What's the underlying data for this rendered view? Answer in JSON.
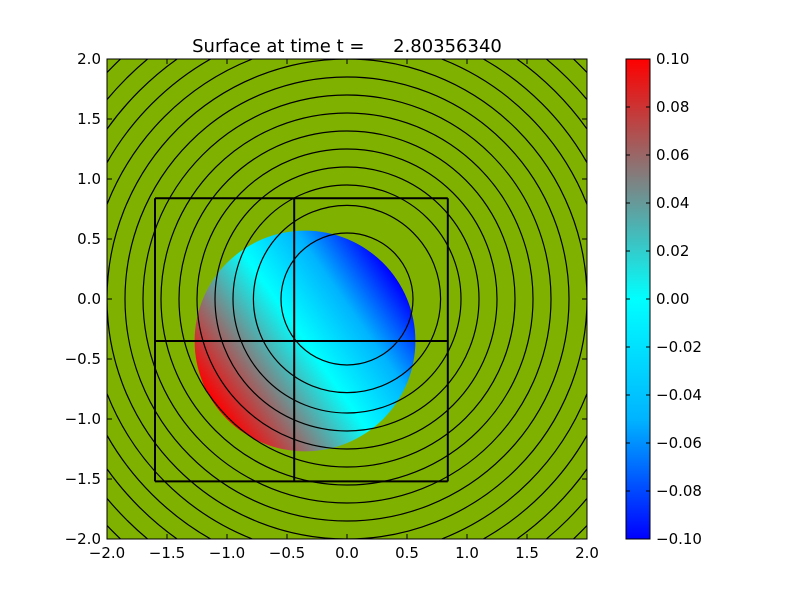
{
  "chart_data": {
    "type": "heatmap",
    "title": "Surface at time t =     2.80356340",
    "xlabel": "",
    "ylabel": "",
    "xlim": [
      -2.0,
      2.0
    ],
    "ylim": [
      -2.0,
      2.0
    ],
    "x_ticks": [
      "−2.0",
      "−1.5",
      "−1.0",
      "−0.5",
      "0.0",
      "0.5",
      "1.0",
      "1.5",
      "2.0"
    ],
    "y_ticks": [
      "2.0",
      "1.5",
      "1.0",
      "0.5",
      "0.0",
      "−0.5",
      "−1.0",
      "−1.5",
      "−2.0"
    ],
    "x_tick_values": [
      -2.0,
      -1.5,
      -1.0,
      -0.5,
      0.0,
      0.5,
      1.0,
      1.5,
      2.0
    ],
    "y_tick_values": [
      2.0,
      1.5,
      1.0,
      0.5,
      0.0,
      -0.5,
      -1.0,
      -1.5,
      -2.0
    ],
    "background_color": "#7fb200",
    "colormap": [
      "#0000ff",
      "#00b4ff",
      "#00ffff",
      "#808080",
      "#ff0000"
    ],
    "colorbar": {
      "min": -0.1,
      "max": 0.1,
      "ticks": [
        "0.10",
        "0.08",
        "0.06",
        "0.04",
        "0.02",
        "0.00",
        "−0.02",
        "−0.04",
        "−0.06",
        "−0.08",
        "−0.10"
      ],
      "tick_values": [
        0.1,
        0.08,
        0.06,
        0.04,
        0.02,
        0.0,
        -0.02,
        -0.04,
        -0.06,
        -0.08,
        -0.1
      ]
    },
    "wet_region": {
      "center": [
        -0.35,
        -0.35
      ],
      "radius": 0.92,
      "surface_min": -0.1,
      "surface_max": 0.1
    },
    "contours": {
      "center": [
        0.0,
        0.0
      ],
      "radii": [
        0.55,
        0.78,
        0.95,
        1.1,
        1.25,
        1.4,
        1.55,
        1.7,
        1.85,
        2.0,
        2.15,
        2.3,
        2.45,
        2.6,
        2.75
      ]
    },
    "grid_patches": {
      "x_lines": [
        -1.6,
        -0.44,
        0.84
      ],
      "y_lines": [
        0.84,
        -0.35,
        -1.52
      ]
    }
  }
}
